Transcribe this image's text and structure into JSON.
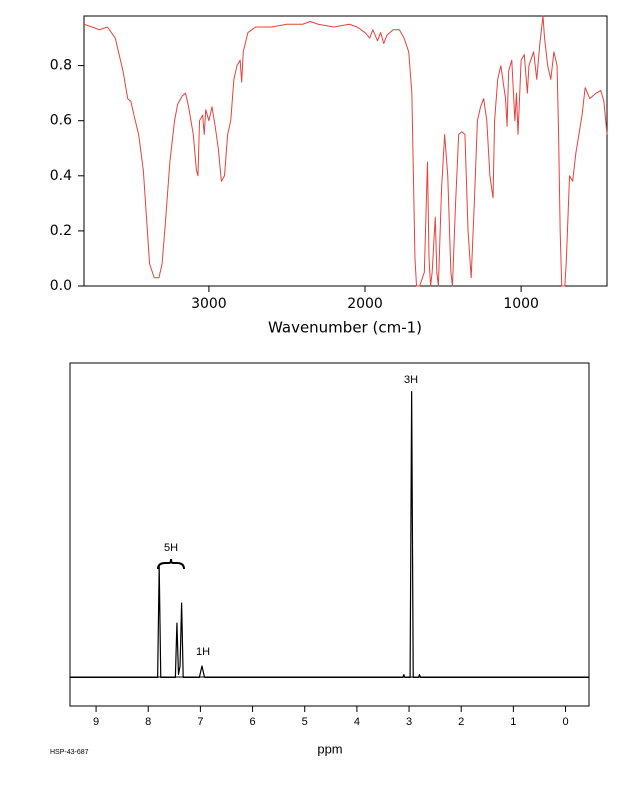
{
  "chart_data": [
    {
      "type": "line",
      "x_label": "Wavenumber (cm-1)",
      "color": "#e8413c",
      "xlim": [
        3800,
        450
      ],
      "xticks": [
        3000,
        2000,
        1000
      ],
      "ylim": [
        0,
        0.98
      ],
      "yticks": [
        {
          "value": 0,
          "label": "0.0"
        },
        0.2,
        0.4,
        0.6,
        0.8
      ],
      "x": [
        3800,
        3750,
        3700,
        3650,
        3600,
        3550,
        3520,
        3500,
        3480,
        3450,
        3420,
        3400,
        3380,
        3350,
        3320,
        3300,
        3280,
        3250,
        3220,
        3200,
        3170,
        3150,
        3130,
        3100,
        3080,
        3070,
        3060,
        3040,
        3030,
        3020,
        3000,
        2980,
        2960,
        2940,
        2920,
        2900,
        2880,
        2860,
        2840,
        2820,
        2800,
        2790,
        2780,
        2750,
        2700,
        2600,
        2500,
        2400,
        2350,
        2300,
        2200,
        2100,
        2050,
        2000,
        1970,
        1950,
        1920,
        1900,
        1880,
        1860,
        1820,
        1780,
        1750,
        1720,
        1700,
        1690,
        1680,
        1670,
        1650,
        1620,
        1600,
        1590,
        1580,
        1570,
        1550,
        1540,
        1530,
        1510,
        1490,
        1470,
        1450,
        1440,
        1420,
        1400,
        1380,
        1360,
        1340,
        1320,
        1300,
        1280,
        1260,
        1240,
        1220,
        1200,
        1180,
        1170,
        1150,
        1130,
        1100,
        1090,
        1080,
        1060,
        1040,
        1030,
        1020,
        1000,
        980,
        960,
        950,
        920,
        900,
        880,
        860,
        850,
        830,
        810,
        790,
        770,
        760,
        750,
        740,
        720,
        710,
        700,
        690,
        670,
        650,
        630,
        610,
        590,
        560,
        520,
        490,
        470,
        450
      ],
      "values": [
        0.95,
        0.94,
        0.93,
        0.94,
        0.9,
        0.78,
        0.68,
        0.67,
        0.62,
        0.55,
        0.42,
        0.25,
        0.08,
        0.03,
        0.03,
        0.08,
        0.22,
        0.45,
        0.6,
        0.66,
        0.69,
        0.7,
        0.65,
        0.55,
        0.42,
        0.4,
        0.6,
        0.62,
        0.55,
        0.64,
        0.6,
        0.65,
        0.58,
        0.5,
        0.38,
        0.4,
        0.55,
        0.6,
        0.75,
        0.8,
        0.82,
        0.74,
        0.85,
        0.92,
        0.94,
        0.94,
        0.95,
        0.95,
        0.96,
        0.95,
        0.94,
        0.95,
        0.94,
        0.92,
        0.9,
        0.93,
        0.89,
        0.92,
        0.88,
        0.91,
        0.93,
        0.93,
        0.9,
        0.85,
        0.7,
        0.4,
        0.1,
        0.0,
        0.0,
        0.05,
        0.45,
        0.1,
        0.0,
        0.05,
        0.25,
        0.05,
        0.0,
        0.35,
        0.55,
        0.4,
        0.05,
        0.0,
        0.3,
        0.55,
        0.56,
        0.55,
        0.2,
        0.03,
        0.3,
        0.6,
        0.65,
        0.68,
        0.6,
        0.4,
        0.32,
        0.6,
        0.75,
        0.8,
        0.68,
        0.58,
        0.78,
        0.82,
        0.6,
        0.7,
        0.55,
        0.82,
        0.84,
        0.7,
        0.8,
        0.85,
        0.75,
        0.88,
        0.98,
        0.9,
        0.8,
        0.75,
        0.85,
        0.8,
        0.55,
        0.2,
        0.0,
        0.0,
        0.1,
        0.25,
        0.4,
        0.38,
        0.48,
        0.55,
        0.62,
        0.72,
        0.68,
        0.7,
        0.71,
        0.67,
        0.55
      ]
    },
    {
      "type": "line",
      "x_label": "ppm",
      "color": "#000000",
      "footnote": "HSP-43-687",
      "annotations": [
        "5H",
        "1H",
        "3H"
      ],
      "xlim": [
        9.5,
        -0.45
      ],
      "xticks": [
        9,
        8,
        7,
        6,
        5,
        4,
        3,
        2,
        1,
        0
      ],
      "ylim": [
        -10,
        110
      ],
      "x": [
        9.5,
        7.82,
        7.79,
        7.76,
        7.48,
        7.45,
        7.42,
        7.39,
        7.36,
        7.33,
        7.02,
        6.97,
        6.92,
        3.12,
        3.1,
        3.08,
        2.98,
        2.95,
        2.92,
        2.82,
        2.8,
        2.78,
        -0.45
      ],
      "values": [
        0,
        0,
        39,
        0,
        0,
        19,
        1,
        4,
        26,
        0,
        0,
        4,
        0,
        0,
        1,
        0,
        0,
        100,
        0,
        0,
        1,
        0,
        0
      ]
    }
  ]
}
